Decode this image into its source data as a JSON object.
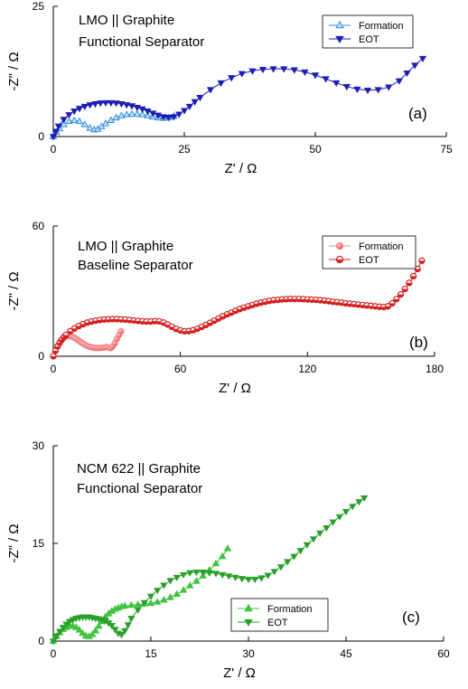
{
  "chart_data": [
    {
      "type": "line",
      "panel": "(a)",
      "annotation": [
        "LMO || Graphite",
        "Functional Separator"
      ],
      "xlabel": "Z' / Ω",
      "ylabel": "-Z\" / Ω",
      "xlim": [
        0,
        75
      ],
      "ylim": [
        0,
        25
      ],
      "xticks": [
        0,
        25,
        50,
        75
      ],
      "yticks": [
        0,
        25
      ],
      "legend_position": "top-right",
      "series": [
        {
          "name": "Formation",
          "marker": "triangle-up-open",
          "color": "#3a8fd8",
          "x": [
            0,
            0.6,
            1.2,
            2,
            3,
            4,
            5,
            6,
            7,
            7.8,
            8.5,
            9.2,
            10,
            11,
            12,
            13,
            14,
            15,
            16,
            17,
            18,
            19,
            20,
            21,
            22,
            23
          ],
          "y": [
            0,
            0.8,
            1.5,
            2.3,
            2.9,
            3.1,
            2.9,
            2.3,
            1.6,
            1.3,
            1.4,
            1.9,
            2.5,
            3.1,
            3.6,
            4.0,
            4.2,
            4.3,
            4.3,
            4.2,
            4.0,
            3.8,
            3.6,
            3.5,
            3.6,
            3.9
          ]
        },
        {
          "name": "EOT",
          "marker": "triangle-down",
          "color": "#1b1fb5",
          "x": [
            0,
            0.5,
            1,
            2,
            3,
            4,
            5,
            6,
            7,
            8,
            9,
            10,
            11,
            12,
            13,
            14,
            15,
            16,
            17,
            18,
            19,
            20,
            21,
            22,
            23,
            24,
            25,
            26,
            27,
            28,
            30,
            32,
            34,
            36,
            38,
            40,
            42,
            44,
            46,
            48,
            50,
            52,
            54,
            56,
            58,
            60,
            62,
            64,
            66,
            67.5,
            69,
            70.5
          ],
          "y": [
            0,
            1.0,
            2.0,
            3.3,
            4.2,
            4.9,
            5.4,
            5.8,
            6.1,
            6.3,
            6.45,
            6.5,
            6.5,
            6.45,
            6.3,
            6.1,
            5.9,
            5.6,
            5.3,
            4.9,
            4.5,
            4.1,
            3.8,
            3.7,
            3.8,
            4.3,
            5.0,
            5.8,
            6.7,
            7.5,
            9.0,
            10.3,
            11.3,
            12.1,
            12.6,
            12.9,
            13.0,
            13.0,
            12.8,
            12.4,
            11.8,
            11.1,
            10.3,
            9.6,
            9.1,
            8.9,
            9.0,
            9.5,
            10.7,
            12.2,
            13.7,
            15.0
          ]
        }
      ]
    },
    {
      "type": "line",
      "panel": "(b)",
      "annotation": [
        "LMO || Graphite",
        "Baseline Separator"
      ],
      "xlabel": "Z' / Ω",
      "ylabel": "-Z\" / Ω",
      "xlim": [
        0,
        180
      ],
      "ylim": [
        0,
        60
      ],
      "xticks": [
        0,
        60,
        120,
        180
      ],
      "yticks": [
        0,
        60
      ],
      "legend_position": "top-right",
      "series": [
        {
          "name": "Formation",
          "marker": "circle",
          "color": "#f08080",
          "x": [
            0,
            1,
            2,
            3,
            4,
            5,
            6,
            7,
            8,
            9,
            10,
            11,
            12,
            13,
            14,
            15,
            16,
            17,
            18,
            19,
            20,
            21,
            22,
            23,
            24,
            25,
            26,
            27,
            28,
            29,
            30,
            31,
            32
          ],
          "y": [
            0,
            2.5,
            4.8,
            6.5,
            7.8,
            8.7,
            9.2,
            9.4,
            9.3,
            9.0,
            8.5,
            7.9,
            7.2,
            6.5,
            5.9,
            5.3,
            4.8,
            4.4,
            4.1,
            3.9,
            3.8,
            3.8,
            3.8,
            3.9,
            4.0,
            4.2,
            4.0,
            3.7,
            4.5,
            6.0,
            8.0,
            9.8,
            11.5
          ]
        },
        {
          "name": "EOT",
          "marker": "circle-half",
          "color": "#d61f1f",
          "x": [
            0,
            1,
            2,
            3,
            4,
            5,
            6,
            8,
            10,
            12,
            14,
            16,
            18,
            20,
            22,
            24,
            26,
            28,
            30,
            32,
            34,
            36,
            38,
            40,
            42,
            44,
            46,
            48,
            50,
            52,
            54,
            56,
            58,
            60,
            62,
            64,
            66,
            68,
            70,
            72,
            74,
            76,
            78,
            80,
            82,
            84,
            86,
            88,
            90,
            92,
            94,
            96,
            98,
            100,
            102,
            104,
            106,
            108,
            110,
            112,
            114,
            116,
            118,
            120,
            122,
            124,
            126,
            128,
            130,
            132,
            134,
            136,
            138,
            140,
            142,
            144,
            146,
            148,
            150,
            152,
            154,
            156,
            158,
            160,
            162,
            164,
            166,
            168,
            170,
            172,
            174
          ],
          "y": [
            0,
            2.5,
            4.5,
            6.2,
            7.6,
            8.8,
            9.8,
            11.5,
            12.8,
            13.9,
            14.8,
            15.5,
            16.0,
            16.4,
            16.7,
            16.9,
            17.0,
            17.1,
            17.1,
            17.0,
            16.9,
            16.7,
            16.5,
            16.3,
            16.1,
            16.0,
            16.0,
            16.2,
            16.1,
            15.5,
            14.6,
            13.6,
            12.6,
            11.9,
            11.5,
            11.6,
            12.0,
            12.7,
            13.5,
            14.4,
            15.4,
            16.4,
            17.4,
            18.4,
            19.3,
            20.1,
            20.9,
            21.7,
            22.4,
            23.0,
            23.6,
            24.2,
            24.7,
            25.1,
            25.5,
            25.8,
            26.0,
            26.2,
            26.3,
            26.4,
            26.4,
            26.4,
            26.3,
            26.2,
            26.1,
            26.0,
            25.8,
            25.6,
            25.4,
            25.1,
            24.9,
            24.7,
            24.4,
            24.2,
            24.0,
            23.8,
            23.6,
            23.4,
            23.2,
            23.0,
            22.8,
            22.7,
            23.0,
            24.4,
            26.3,
            28.5,
            31.0,
            33.8,
            36.9,
            40.2,
            44.0
          ]
        }
      ]
    },
    {
      "type": "line",
      "panel": "(c)",
      "annotation": [
        "NCM 622 || Graphite",
        "Functional Separator"
      ],
      "xlabel": "Z' / Ω",
      "ylabel": "-Z\" / Ω",
      "xlim": [
        0,
        60
      ],
      "ylim": [
        0,
        30
      ],
      "xticks": [
        0,
        15,
        30,
        45,
        60
      ],
      "yticks": [
        0,
        15,
        30
      ],
      "legend_position": "bottom-center",
      "series": [
        {
          "name": "Formation",
          "marker": "triangle-up",
          "color": "#3fc43f",
          "x": [
            0,
            0.5,
            1,
            1.5,
            2,
            2.5,
            3,
            3.5,
            4,
            4.5,
            5,
            5.5,
            6,
            6.5,
            7,
            7.5,
            8,
            8.5,
            9,
            9.5,
            10,
            10.5,
            11,
            12,
            13,
            14,
            15,
            16,
            17,
            18,
            19,
            20,
            21,
            22,
            23,
            24,
            25,
            26,
            26.8
          ],
          "y": [
            0,
            0.7,
            1.3,
            1.8,
            2.1,
            2.3,
            2.3,
            2.1,
            1.7,
            1.2,
            0.8,
            0.7,
            1.0,
            1.6,
            2.3,
            3.0,
            3.7,
            4.2,
            4.6,
            4.9,
            5.1,
            5.3,
            5.4,
            5.5,
            5.6,
            5.7,
            5.8,
            6.0,
            6.3,
            6.7,
            7.2,
            7.8,
            8.5,
            9.2,
            10.0,
            10.9,
            11.9,
            13.0,
            14.2
          ]
        },
        {
          "name": "EOT",
          "marker": "triangle-down",
          "color": "#28a028",
          "x": [
            0,
            0.5,
            1,
            1.5,
            2,
            2.5,
            3,
            3.5,
            4,
            4.5,
            5,
            5.5,
            6,
            6.5,
            7,
            7.5,
            8,
            8.5,
            9,
            9.5,
            10,
            10.5,
            11,
            11.5,
            12,
            13,
            14,
            15,
            16,
            17,
            18,
            19,
            20,
            21,
            22,
            23,
            24,
            25,
            26,
            27,
            28,
            29,
            30,
            31,
            32,
            33,
            34,
            35,
            36,
            37,
            38,
            39,
            40,
            41,
            42,
            43,
            44,
            45,
            46,
            47,
            47.8
          ],
          "y": [
            0,
            0.8,
            1.5,
            2.1,
            2.6,
            3.0,
            3.3,
            3.5,
            3.6,
            3.7,
            3.7,
            3.7,
            3.6,
            3.5,
            3.4,
            3.3,
            3.1,
            2.8,
            2.4,
            1.8,
            1.2,
            1.0,
            1.6,
            2.5,
            3.5,
            4.8,
            5.9,
            6.9,
            7.8,
            8.6,
            9.3,
            9.8,
            10.2,
            10.5,
            10.6,
            10.6,
            10.5,
            10.4,
            10.2,
            10.0,
            9.8,
            9.6,
            9.5,
            9.5,
            9.7,
            10.1,
            10.7,
            11.4,
            12.2,
            13.0,
            13.9,
            14.8,
            15.7,
            16.6,
            17.4,
            18.3,
            19.1,
            19.9,
            20.7,
            21.4,
            22.0
          ]
        }
      ]
    }
  ]
}
